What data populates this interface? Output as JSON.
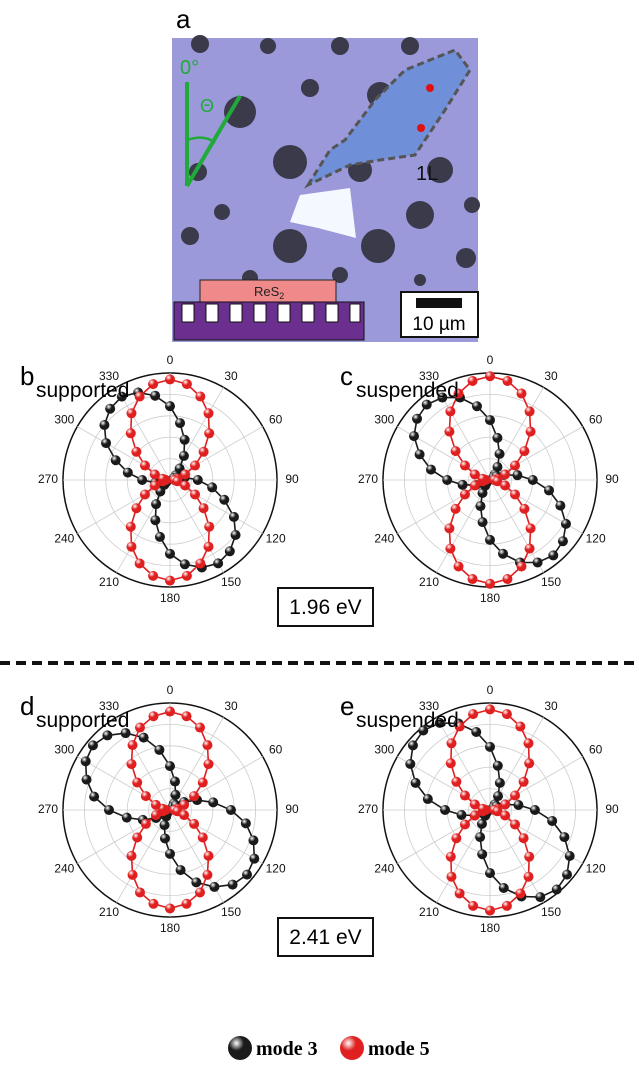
{
  "panel_a": {
    "label": "a",
    "angle_zero": "0°",
    "angle_symbol": "Θ",
    "layer": "1L",
    "substrate_label": "ReS",
    "substrate_sub": "2",
    "scale_bar": "10 µm"
  },
  "legend": [
    {
      "name": "mode 3",
      "color": "#1a1a1a"
    },
    {
      "name": "mode 5",
      "color": "#e02020"
    }
  ],
  "chart_data": [
    {
      "type": "polar",
      "panel": "b",
      "title": "supported",
      "annotation": "1.96 eV",
      "theta": [
        0,
        10,
        20,
        30,
        40,
        50,
        60,
        70,
        80,
        90,
        100,
        110,
        120,
        130,
        140,
        150,
        160,
        170,
        180,
        190,
        200,
        210,
        220,
        230,
        240,
        250,
        260,
        270,
        280,
        290,
        300,
        310,
        320,
        330,
        340,
        350
      ],
      "rlim": [
        0,
        1
      ],
      "rticks": [
        0.2,
        0.4,
        0.6,
        0.8,
        1
      ],
      "thetaticks": [
        0,
        30,
        60,
        90,
        120,
        150,
        180,
        210,
        240,
        270,
        300,
        330
      ],
      "series": [
        {
          "color": "#1a1a1a",
          "values": [
            0.69,
            0.54,
            0.4,
            0.26,
            0.14,
            0.07,
            0.04,
            0.07,
            0.14,
            0.26,
            0.4,
            0.54,
            0.69,
            0.8,
            0.87,
            0.9,
            0.87,
            0.8,
            0.69,
            0.54,
            0.4,
            0.26,
            0.14,
            0.07,
            0.04,
            0.07,
            0.14,
            0.26,
            0.4,
            0.54,
            0.69,
            0.8,
            0.87,
            0.9,
            0.87,
            0.8
          ]
        },
        {
          "color": "#e02020",
          "values": [
            0.94,
            0.91,
            0.83,
            0.72,
            0.57,
            0.41,
            0.27,
            0.15,
            0.07,
            0.04,
            0.07,
            0.15,
            0.27,
            0.41,
            0.57,
            0.72,
            0.83,
            0.91,
            0.94,
            0.91,
            0.83,
            0.72,
            0.57,
            0.41,
            0.27,
            0.15,
            0.07,
            0.04,
            0.07,
            0.15,
            0.27,
            0.41,
            0.57,
            0.72,
            0.83,
            0.91
          ]
        }
      ]
    },
    {
      "type": "polar",
      "panel": "c",
      "title": "suspended",
      "theta": [
        0,
        10,
        20,
        30,
        40,
        50,
        60,
        70,
        80,
        90,
        100,
        110,
        120,
        130,
        140,
        150,
        160,
        170,
        180,
        190,
        200,
        210,
        220,
        230,
        240,
        250,
        260,
        270,
        280,
        290,
        300,
        310,
        320,
        330,
        340,
        350
      ],
      "rlim": [
        0,
        1
      ],
      "rticks": [
        0.2,
        0.4,
        0.6,
        0.8,
        1
      ],
      "thetaticks": [
        0,
        30,
        60,
        90,
        120,
        150,
        180,
        210,
        240,
        270,
        300,
        330
      ],
      "series": [
        {
          "color": "#1a1a1a",
          "values": [
            0.56,
            0.4,
            0.26,
            0.14,
            0.07,
            0.04,
            0.07,
            0.14,
            0.26,
            0.4,
            0.56,
            0.7,
            0.82,
            0.89,
            0.92,
            0.89,
            0.82,
            0.7,
            0.56,
            0.4,
            0.26,
            0.14,
            0.07,
            0.04,
            0.07,
            0.14,
            0.26,
            0.4,
            0.56,
            0.7,
            0.82,
            0.89,
            0.92,
            0.89,
            0.82,
            0.7
          ]
        },
        {
          "color": "#e02020",
          "values": [
            0.97,
            0.94,
            0.86,
            0.74,
            0.59,
            0.42,
            0.27,
            0.15,
            0.07,
            0.04,
            0.07,
            0.15,
            0.27,
            0.42,
            0.59,
            0.74,
            0.86,
            0.94,
            0.97,
            0.94,
            0.86,
            0.74,
            0.59,
            0.42,
            0.27,
            0.15,
            0.07,
            0.04,
            0.07,
            0.15,
            0.27,
            0.42,
            0.59,
            0.74,
            0.86,
            0.94
          ]
        }
      ]
    },
    {
      "type": "polar",
      "panel": "d",
      "title": "supported",
      "annotation": "2.41 eV",
      "theta": [
        0,
        10,
        20,
        30,
        40,
        50,
        60,
        70,
        80,
        90,
        100,
        110,
        120,
        130,
        140,
        150,
        160,
        170,
        180,
        190,
        200,
        210,
        220,
        230,
        240,
        250,
        260,
        270,
        280,
        290,
        300,
        310,
        320,
        330,
        340,
        350
      ],
      "rlim": [
        0,
        1
      ],
      "rticks": [
        0.2,
        0.4,
        0.6,
        0.8,
        1
      ],
      "thetaticks": [
        0,
        30,
        60,
        90,
        120,
        150,
        180,
        210,
        240,
        270,
        300,
        330
      ],
      "series": [
        {
          "color": "#1a1a1a",
          "values": [
            0.41,
            0.27,
            0.15,
            0.07,
            0.04,
            0.07,
            0.15,
            0.27,
            0.41,
            0.57,
            0.72,
            0.83,
            0.91,
            0.94,
            0.91,
            0.83,
            0.72,
            0.57,
            0.41,
            0.27,
            0.15,
            0.07,
            0.04,
            0.07,
            0.15,
            0.27,
            0.41,
            0.57,
            0.72,
            0.83,
            0.91,
            0.94,
            0.91,
            0.83,
            0.72,
            0.57
          ]
        },
        {
          "color": "#e02020",
          "values": [
            0.92,
            0.89,
            0.82,
            0.7,
            0.56,
            0.4,
            0.26,
            0.14,
            0.07,
            0.04,
            0.07,
            0.14,
            0.26,
            0.4,
            0.56,
            0.7,
            0.82,
            0.89,
            0.92,
            0.89,
            0.82,
            0.7,
            0.56,
            0.4,
            0.26,
            0.14,
            0.07,
            0.04,
            0.07,
            0.14,
            0.26,
            0.4,
            0.56,
            0.7,
            0.82,
            0.89
          ]
        }
      ]
    },
    {
      "type": "polar",
      "panel": "e",
      "title": "suspended",
      "theta": [
        0,
        10,
        20,
        30,
        40,
        50,
        60,
        70,
        80,
        90,
        100,
        110,
        120,
        130,
        140,
        150,
        160,
        170,
        180,
        190,
        200,
        210,
        220,
        230,
        240,
        250,
        260,
        270,
        280,
        290,
        300,
        310,
        320,
        330,
        340,
        350
      ],
      "rlim": [
        0,
        1
      ],
      "rticks": [
        0.2,
        0.4,
        0.6,
        0.8,
        1
      ],
      "thetaticks": [
        0,
        30,
        60,
        90,
        120,
        150,
        180,
        210,
        240,
        270,
        300,
        330
      ],
      "series": [
        {
          "color": "#1a1a1a",
          "values": [
            0.59,
            0.42,
            0.27,
            0.15,
            0.07,
            0.04,
            0.07,
            0.15,
            0.27,
            0.42,
            0.59,
            0.74,
            0.86,
            0.94,
            0.97,
            0.94,
            0.86,
            0.74,
            0.59,
            0.42,
            0.27,
            0.15,
            0.07,
            0.04,
            0.07,
            0.15,
            0.27,
            0.42,
            0.59,
            0.74,
            0.86,
            0.94,
            0.97,
            0.94,
            0.86,
            0.74
          ]
        },
        {
          "color": "#e02020",
          "values": [
            0.94,
            0.91,
            0.83,
            0.72,
            0.57,
            0.41,
            0.27,
            0.15,
            0.07,
            0.04,
            0.07,
            0.15,
            0.27,
            0.41,
            0.57,
            0.72,
            0.83,
            0.91,
            0.94,
            0.91,
            0.83,
            0.72,
            0.57,
            0.41,
            0.27,
            0.15,
            0.07,
            0.04,
            0.07,
            0.15,
            0.27,
            0.41,
            0.57,
            0.72,
            0.83,
            0.91
          ]
        }
      ]
    }
  ]
}
